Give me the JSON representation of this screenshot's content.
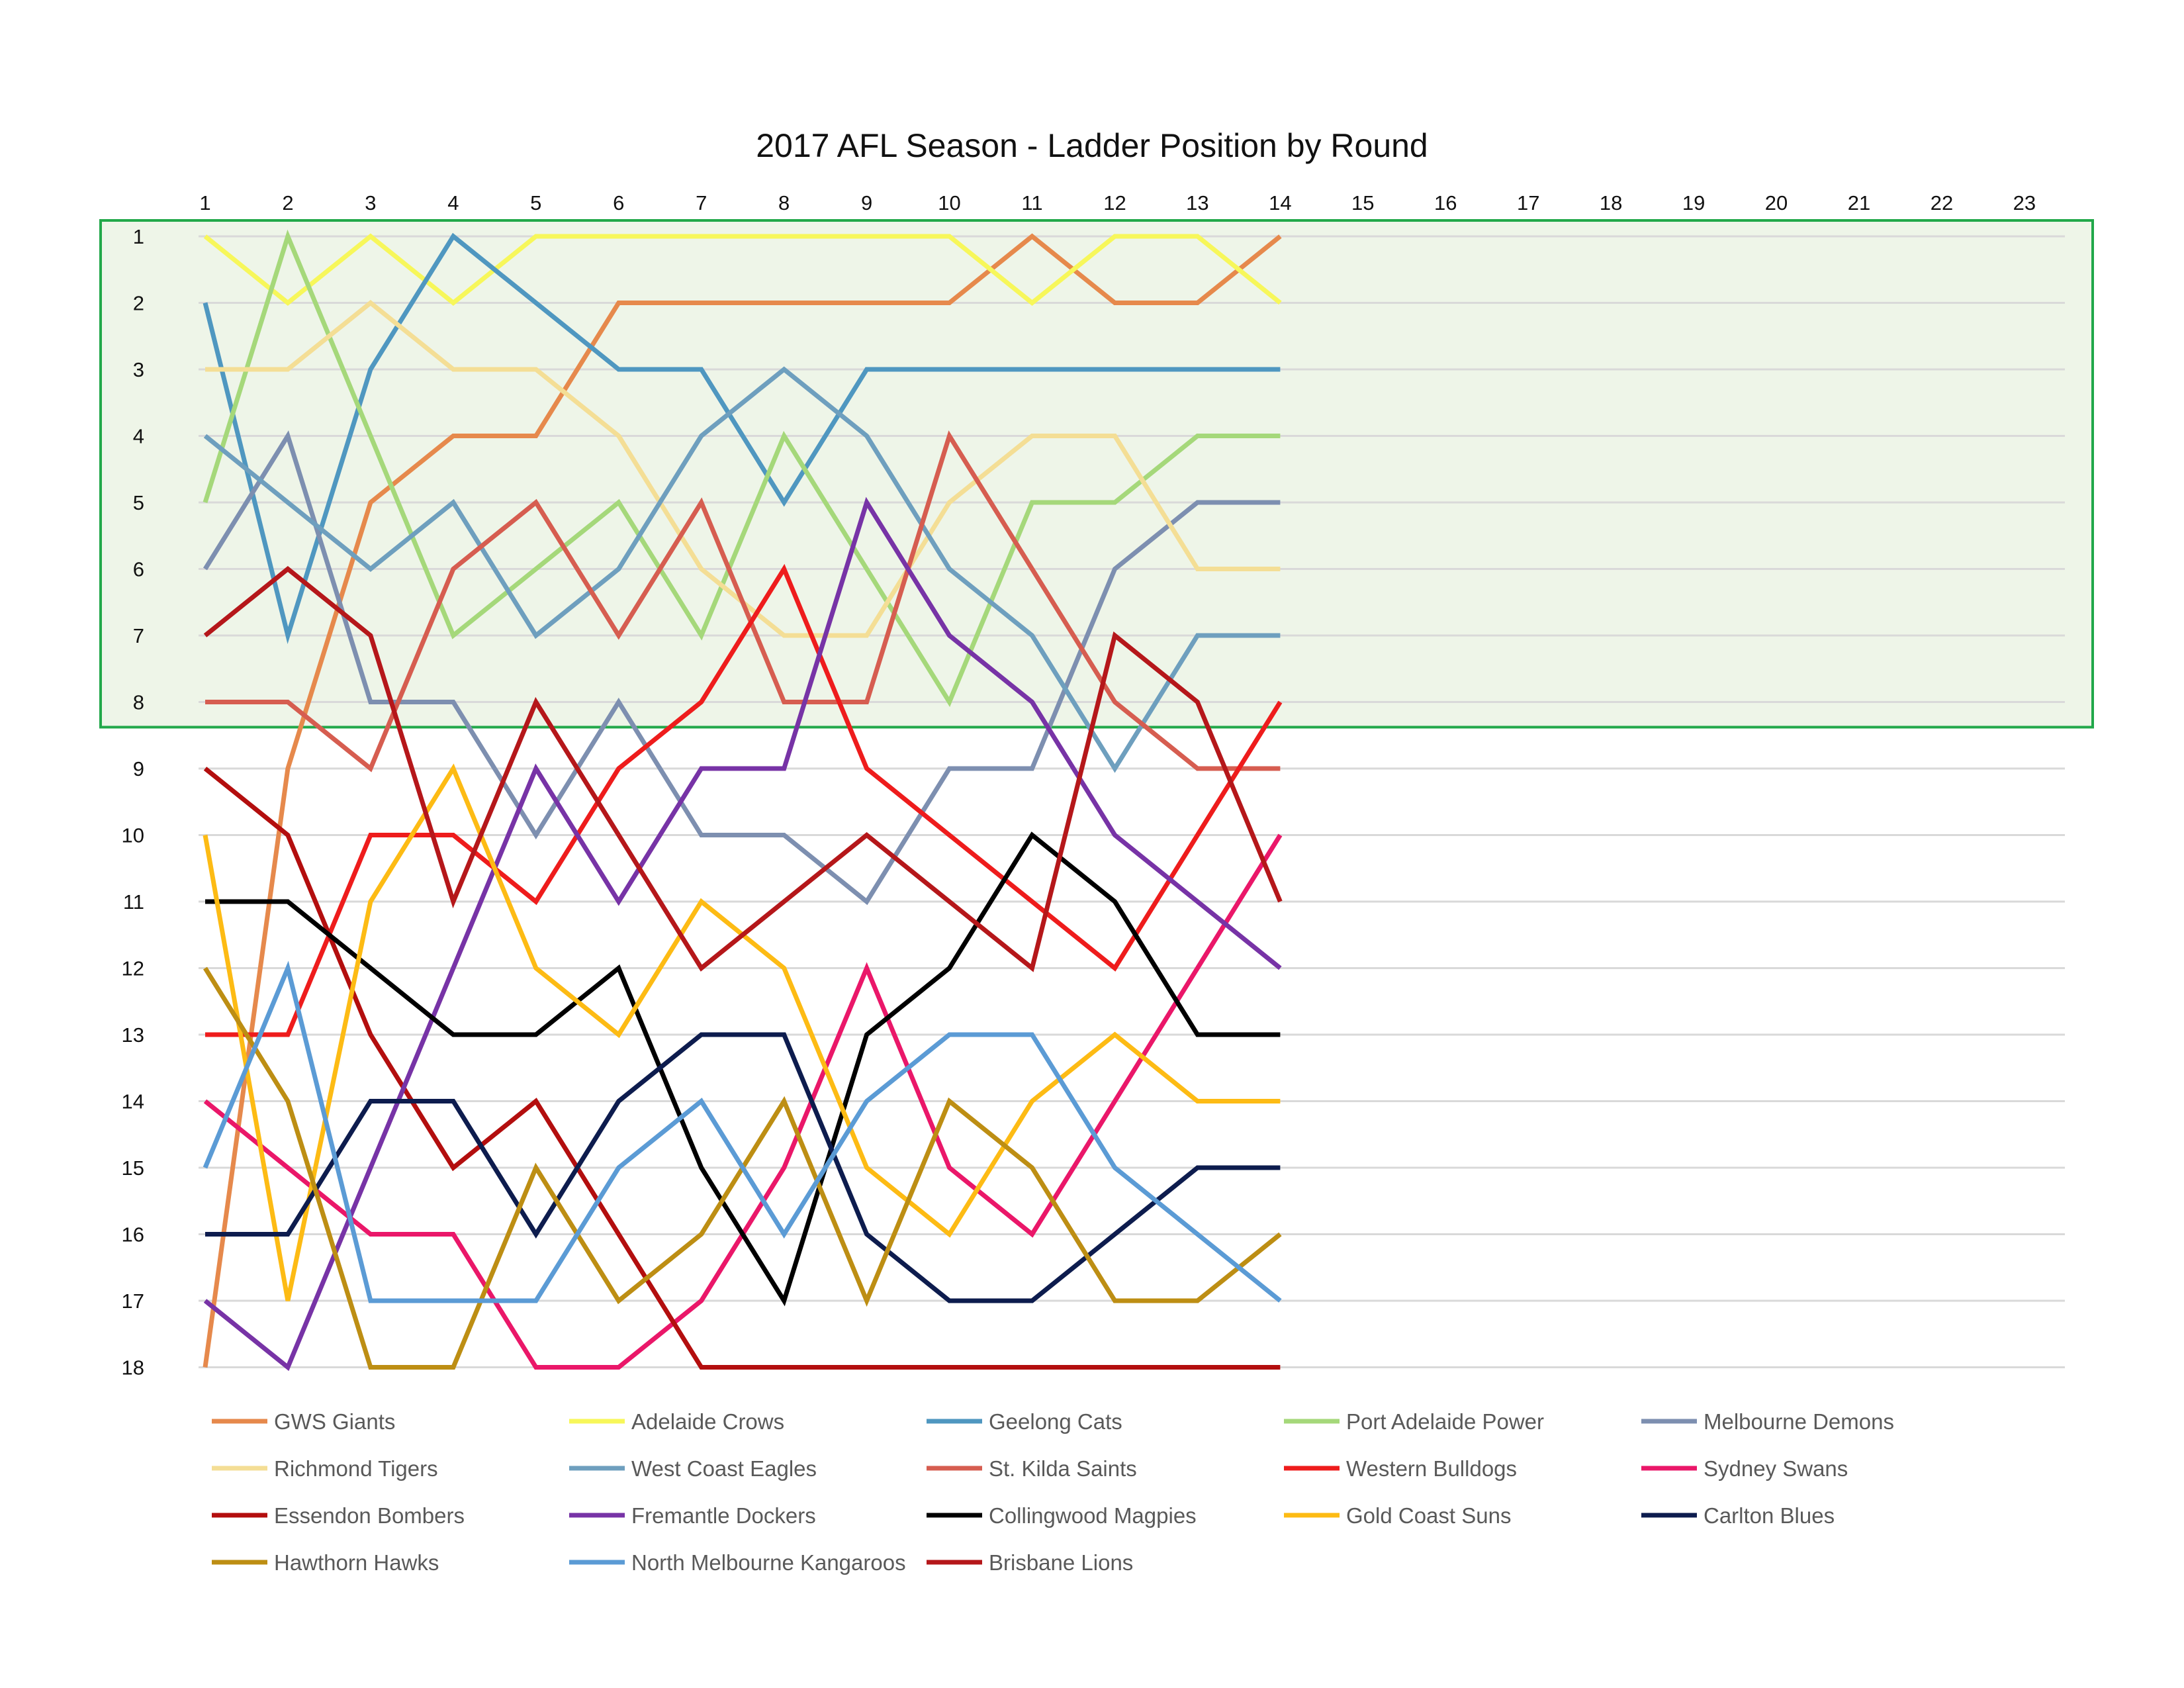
{
  "chart_data": {
    "type": "line",
    "title": "2017 AFL Season - Ladder Position by Round",
    "x_ticks": [
      1,
      2,
      3,
      4,
      5,
      6,
      7,
      8,
      9,
      10,
      11,
      12,
      13,
      14,
      15,
      16,
      17,
      18,
      19,
      20,
      21,
      22,
      23
    ],
    "y_ticks": [
      1,
      2,
      3,
      4,
      5,
      6,
      7,
      8,
      9,
      10,
      11,
      12,
      13,
      14,
      15,
      16,
      17,
      18
    ],
    "xlim": [
      1,
      23
    ],
    "ylim": [
      1,
      18
    ],
    "y_inverted": true,
    "x_axis_position": "top",
    "highlight_band": {
      "from": 1,
      "to": 8,
      "fill": "#eef5e8",
      "border": "#22a84a"
    },
    "grid": true,
    "legend_position": "bottom",
    "series": [
      {
        "name": "GWS Giants",
        "color": "#e6894c",
        "values": [
          18,
          9,
          5,
          4,
          4,
          2,
          2,
          2,
          2,
          2,
          1,
          2,
          2,
          1
        ]
      },
      {
        "name": "Adelaide Crows",
        "color": "#f7f75a",
        "values": [
          1,
          2,
          1,
          2,
          1,
          1,
          1,
          1,
          1,
          1,
          2,
          1,
          1,
          2
        ]
      },
      {
        "name": "Geelong Cats",
        "color": "#4f97c0",
        "values": [
          2,
          7,
          3,
          1,
          2,
          3,
          3,
          5,
          3,
          3,
          3,
          3,
          3,
          3
        ]
      },
      {
        "name": "Port Adelaide Power",
        "color": "#a5d87a",
        "values": [
          5,
          1,
          4,
          7,
          6,
          5,
          7,
          4,
          6,
          8,
          5,
          5,
          4,
          4
        ]
      },
      {
        "name": "Melbourne Demons",
        "color": "#7d8fb0",
        "values": [
          6,
          4,
          8,
          8,
          10,
          8,
          10,
          10,
          11,
          9,
          9,
          6,
          5,
          5
        ]
      },
      {
        "name": "Richmond Tigers",
        "color": "#f4de95",
        "values": [
          3,
          3,
          2,
          3,
          3,
          4,
          6,
          7,
          7,
          5,
          4,
          4,
          6,
          6
        ]
      },
      {
        "name": "West Coast Eagles",
        "color": "#6e9fbe",
        "values": [
          4,
          5,
          6,
          5,
          7,
          6,
          4,
          3,
          4,
          6,
          7,
          9,
          7,
          7
        ]
      },
      {
        "name": "St. Kilda Saints",
        "color": "#d65d50",
        "values": [
          8,
          8,
          9,
          6,
          5,
          7,
          5,
          8,
          8,
          4,
          6,
          8,
          9,
          9
        ]
      },
      {
        "name": "Western Bulldogs",
        "color": "#ee1c1c",
        "values": [
          13,
          13,
          10,
          10,
          11,
          9,
          8,
          6,
          9,
          10,
          11,
          12,
          10,
          8
        ]
      },
      {
        "name": "Sydney Swans",
        "color": "#ea1769",
        "values": [
          14,
          15,
          16,
          16,
          18,
          18,
          17,
          15,
          12,
          15,
          16,
          14,
          12,
          10
        ]
      },
      {
        "name": "Essendon Bombers",
        "color": "#b30e0e",
        "values": [
          9,
          10,
          13,
          15,
          14,
          16,
          18,
          18,
          18,
          18,
          18,
          18,
          18,
          18
        ]
      },
      {
        "name": "Fremantle Dockers",
        "color": "#7733a6",
        "values": [
          17,
          18,
          15,
          12,
          9,
          11,
          9,
          9,
          5,
          7,
          8,
          10,
          11,
          12
        ]
      },
      {
        "name": "Collingwood Magpies",
        "color": "#000000",
        "values": [
          11,
          11,
          12,
          13,
          13,
          12,
          15,
          17,
          13,
          12,
          10,
          11,
          13,
          13
        ]
      },
      {
        "name": "Gold Coast Suns",
        "color": "#fdbb14",
        "values": [
          10,
          17,
          11,
          9,
          12,
          13,
          11,
          12,
          15,
          16,
          14,
          13,
          14,
          14
        ]
      },
      {
        "name": "Carlton Blues",
        "color": "#0d1c4e",
        "values": [
          16,
          16,
          14,
          14,
          16,
          14,
          13,
          13,
          16,
          17,
          17,
          16,
          15,
          15
        ]
      },
      {
        "name": "Hawthorn Hawks",
        "color": "#bd8e13",
        "values": [
          12,
          14,
          18,
          18,
          15,
          17,
          16,
          14,
          17,
          14,
          15,
          17,
          17,
          16
        ]
      },
      {
        "name": "North Melbourne Kangaroos",
        "color": "#5b9bd5",
        "values": [
          15,
          12,
          17,
          17,
          17,
          15,
          14,
          16,
          14,
          13,
          13,
          15,
          16,
          17
        ]
      },
      {
        "name": "Brisbane Lions",
        "color": "#b5171a",
        "values": [
          7,
          6,
          7,
          11,
          8,
          10,
          12,
          11,
          10,
          11,
          12,
          7,
          8,
          11
        ]
      }
    ]
  }
}
